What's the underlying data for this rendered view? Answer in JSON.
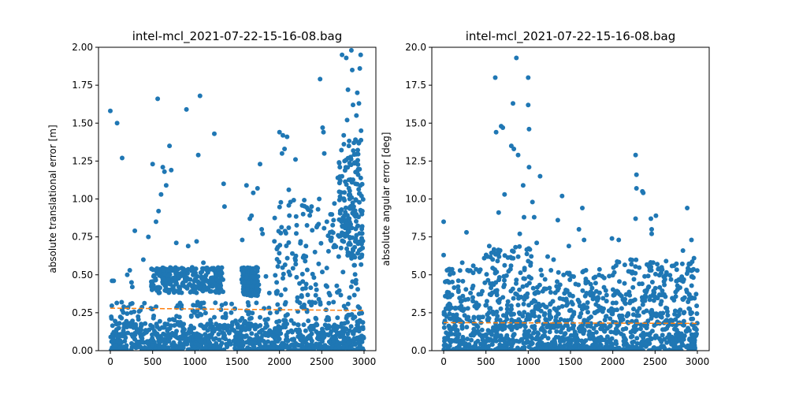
{
  "chart_data": [
    {
      "type": "scatter",
      "title": "intel-mcl_2021-07-22-15-16-08.bag",
      "xlabel": "",
      "ylabel": "absolute translational error [m]",
      "xlim": [
        -140,
        3140
      ],
      "ylim": [
        0,
        2.0
      ],
      "x_ticks": [
        0,
        500,
        1000,
        1500,
        2000,
        2500,
        3000
      ],
      "x_tick_labels": [
        "0",
        "500",
        "1000",
        "1500",
        "2000",
        "2500",
        "3000"
      ],
      "y_ticks": [
        0,
        0.25,
        0.5,
        0.75,
        1.0,
        1.25,
        1.5,
        1.75,
        2.0
      ],
      "y_tick_labels": [
        "0.00",
        "0.25",
        "0.50",
        "0.75",
        "1.00",
        "1.25",
        "1.50",
        "1.75",
        "2.00"
      ],
      "grid": false,
      "legend": "none",
      "series": [
        {
          "kind": "scatter",
          "color": "#1f77b4",
          "points": [
            [
              0,
              1.58
            ],
            [
              20,
              0.46
            ],
            [
              40,
              0.46
            ],
            [
              80,
              1.5
            ],
            [
              140,
              1.27
            ],
            [
              200,
              0.5
            ],
            [
              230,
              0.53
            ],
            [
              250,
              0.45
            ],
            [
              260,
              0.42
            ],
            [
              290,
              0.79
            ],
            [
              390,
              0.6
            ],
            [
              450,
              0.75
            ],
            [
              500,
              1.23
            ],
            [
              540,
              0.85
            ],
            [
              560,
              1.66
            ],
            [
              570,
              0.92
            ],
            [
              600,
              1.03
            ],
            [
              620,
              1.21
            ],
            [
              640,
              1.18
            ],
            [
              660,
              1.09
            ],
            [
              700,
              1.35
            ],
            [
              720,
              1.19
            ],
            [
              780,
              0.71
            ],
            [
              810,
              0.42
            ],
            [
              900,
              1.59
            ],
            [
              920,
              0.69
            ],
            [
              1020,
              0.72
            ],
            [
              1040,
              1.29
            ],
            [
              1060,
              1.68
            ],
            [
              1100,
              0.58
            ],
            [
              1230,
              1.43
            ],
            [
              1340,
              1.1
            ],
            [
              1350,
              0.95
            ],
            [
              1560,
              0.73
            ],
            [
              1610,
              1.09
            ],
            [
              1650,
              0.87
            ],
            [
              1670,
              0.89
            ],
            [
              1690,
              1.04
            ],
            [
              1740,
              1.07
            ],
            [
              1770,
              1.23
            ],
            [
              1790,
              0.8
            ],
            [
              1800,
              0.77
            ],
            [
              1840,
              0.49
            ],
            [
              1880,
              0.38
            ],
            [
              1970,
              0.67
            ],
            [
              2000,
              1.44
            ],
            [
              2030,
              1.3
            ],
            [
              2040,
              1.42
            ],
            [
              2060,
              1.33
            ],
            [
              2090,
              1.41
            ],
            [
              2110,
              1.06
            ],
            [
              2130,
              0.98
            ],
            [
              2190,
              1.26
            ],
            [
              2250,
              0.72
            ],
            [
              2280,
              0.9
            ],
            [
              2340,
              0.93
            ],
            [
              2380,
              0.95
            ],
            [
              2420,
              0.65
            ],
            [
              2470,
              1.0
            ],
            [
              2480,
              1.79
            ],
            [
              2510,
              1.47
            ],
            [
              2520,
              1.44
            ],
            [
              2530,
              1.3
            ],
            [
              2560,
              0.85
            ],
            [
              2600,
              0.78
            ],
            [
              2640,
              0.86
            ],
            [
              2650,
              0.97
            ],
            [
              2690,
              1.14
            ],
            [
              2700,
              0.62
            ],
            [
              2720,
              0.92
            ],
            [
              2740,
              1.95
            ],
            [
              2760,
              1.42
            ],
            [
              2770,
              1.25
            ],
            [
              2790,
              1.93
            ],
            [
              2800,
              1.52
            ],
            [
              2810,
              1.72
            ],
            [
              2820,
              1.35
            ],
            [
              2830,
              1.0
            ],
            [
              2850,
              1.98
            ],
            [
              2860,
              1.85
            ],
            [
              2870,
              1.62
            ],
            [
              2880,
              1.37
            ],
            [
              2890,
              1.24
            ],
            [
              2900,
              1.1
            ],
            [
              2910,
              1.55
            ],
            [
              2920,
              1.7
            ],
            [
              2930,
              1.16
            ],
            [
              2940,
              1.63
            ],
            [
              2950,
              1.86
            ],
            [
              2960,
              1.95
            ],
            [
              2965,
              1.45
            ],
            [
              2970,
              1.02
            ],
            [
              2975,
              0.9
            ],
            [
              2980,
              0.92
            ]
          ],
          "band_clusters": [
            {
              "x_range": [
                0,
                3000
              ],
              "y_range": [
                0,
                0.18
              ],
              "density": "very high"
            },
            {
              "x_range": [
                0,
                3000
              ],
              "y_range": [
                0.18,
                0.32
              ],
              "density": "medium"
            },
            {
              "x_range": [
                480,
                1340
              ],
              "y_range": [
                0.38,
                0.55
              ],
              "density": "high"
            },
            {
              "x_range": [
                1550,
                1760
              ],
              "y_range": [
                0.36,
                0.55
              ],
              "density": "medium"
            },
            {
              "x_range": [
                1940,
                2990
              ],
              "y_range": [
                0.3,
                1.0
              ],
              "density": "medium"
            },
            {
              "x_range": [
                2700,
                2990
              ],
              "y_range": [
                0.6,
                1.4
              ],
              "density": "medium"
            }
          ]
        },
        {
          "kind": "line",
          "color": "#ff7f0e",
          "style": "dashed",
          "x": [
            0,
            3000
          ],
          "values": [
            0.28,
            0.265
          ]
        }
      ]
    },
    {
      "type": "scatter",
      "title": "intel-mcl_2021-07-22-15-16-08.bag",
      "xlabel": "",
      "ylabel": "absolute angular error [deg]",
      "xlim": [
        -140,
        3140
      ],
      "ylim": [
        0,
        20.0
      ],
      "x_ticks": [
        0,
        500,
        1000,
        1500,
        2000,
        2500,
        3000
      ],
      "x_tick_labels": [
        "0",
        "500",
        "1000",
        "1500",
        "2000",
        "2500",
        "3000"
      ],
      "y_ticks": [
        0,
        2.5,
        5.0,
        7.5,
        10.0,
        12.5,
        15.0,
        17.5,
        20.0
      ],
      "y_tick_labels": [
        "0.0",
        "2.5",
        "5.0",
        "7.5",
        "10.0",
        "12.5",
        "15.0",
        "17.5",
        "20.0"
      ],
      "grid": false,
      "legend": "none",
      "series": [
        {
          "kind": "scatter",
          "color": "#1f77b4",
          "points": [
            [
              0,
              8.5
            ],
            [
              0,
              6.3
            ],
            [
              40,
              5.3
            ],
            [
              220,
              5.8
            ],
            [
              270,
              7.8
            ],
            [
              350,
              5.6
            ],
            [
              420,
              5.2
            ],
            [
              480,
              6.1
            ],
            [
              520,
              6.2
            ],
            [
              610,
              18.0
            ],
            [
              620,
              14.4
            ],
            [
              650,
              9.1
            ],
            [
              680,
              14.8
            ],
            [
              700,
              14.7
            ],
            [
              720,
              10.3
            ],
            [
              800,
              13.5
            ],
            [
              820,
              16.3
            ],
            [
              830,
              13.3
            ],
            [
              860,
              19.3
            ],
            [
              880,
              12.9
            ],
            [
              900,
              7.7
            ],
            [
              940,
              10.9
            ],
            [
              950,
              8.8
            ],
            [
              1000,
              18.0
            ],
            [
              1000,
              16.2
            ],
            [
              1010,
              14.6
            ],
            [
              1010,
              12.1
            ],
            [
              1050,
              9.8
            ],
            [
              1070,
              8.8
            ],
            [
              1100,
              7.1
            ],
            [
              1140,
              11.5
            ],
            [
              1230,
              6.2
            ],
            [
              1300,
              6.0
            ],
            [
              1350,
              8.6
            ],
            [
              1400,
              10.2
            ],
            [
              1480,
              6.9
            ],
            [
              1600,
              8.0
            ],
            [
              1640,
              9.4
            ],
            [
              1660,
              7.3
            ],
            [
              1990,
              7.4
            ],
            [
              2070,
              7.3
            ],
            [
              2210,
              6.0
            ],
            [
              2270,
              12.9
            ],
            [
              2280,
              11.6
            ],
            [
              2280,
              10.7
            ],
            [
              2270,
              8.7
            ],
            [
              2350,
              10.5
            ],
            [
              2360,
              10.4
            ],
            [
              2450,
              8.7
            ],
            [
              2460,
              7.7
            ],
            [
              2460,
              8.0
            ],
            [
              2510,
              8.9
            ],
            [
              2630,
              5.9
            ],
            [
              2830,
              6.6
            ],
            [
              2880,
              9.4
            ],
            [
              2930,
              7.3
            ],
            [
              2960,
              6.1
            ]
          ],
          "band_clusters": [
            {
              "x_range": [
                0,
                3000
              ],
              "y_range": [
                0,
                2.5
              ],
              "density": "very high"
            },
            {
              "x_range": [
                0,
                3000
              ],
              "y_range": [
                2.5,
                4.0
              ],
              "density": "high"
            },
            {
              "x_range": [
                0,
                3000
              ],
              "y_range": [
                4.0,
                5.5
              ],
              "density": "medium"
            },
            {
              "x_range": [
                500,
                1150
              ],
              "y_range": [
                5.0,
                7.0
              ],
              "density": "low"
            },
            {
              "x_range": [
                2000,
                2950
              ],
              "y_range": [
                5.0,
                6.0
              ],
              "density": "low"
            }
          ]
        },
        {
          "kind": "line",
          "color": "#ff7f0e",
          "style": "dashed",
          "x": [
            0,
            3000
          ],
          "values": [
            1.85,
            1.8
          ]
        }
      ]
    }
  ]
}
